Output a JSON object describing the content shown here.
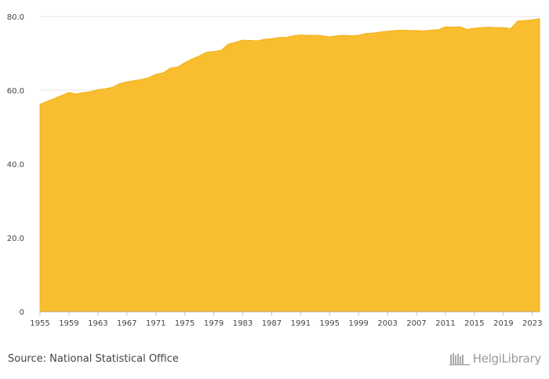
{
  "chart_data": {
    "type": "area",
    "title": "",
    "xlabel": "",
    "ylabel": "",
    "ylim": [
      0,
      80
    ],
    "xlim": [
      1955,
      2024
    ],
    "y_ticks": [
      "0",
      "20.0",
      "40.0",
      "60.0",
      "80.0"
    ],
    "x_ticks": [
      "1955",
      "1959",
      "1963",
      "1967",
      "1971",
      "1975",
      "1979",
      "1983",
      "1987",
      "1991",
      "1995",
      "1999",
      "2003",
      "2007",
      "2011",
      "2015",
      "2019",
      "2023"
    ],
    "grid": true,
    "legend": "none",
    "fill_color": "#F9BD30",
    "x": [
      1955,
      1956,
      1957,
      1958,
      1959,
      1960,
      1961,
      1962,
      1963,
      1964,
      1965,
      1966,
      1967,
      1968,
      1969,
      1970,
      1971,
      1972,
      1973,
      1974,
      1975,
      1976,
      1977,
      1978,
      1979,
      1980,
      1981,
      1982,
      1983,
      1984,
      1985,
      1986,
      1987,
      1988,
      1989,
      1990,
      1991,
      1992,
      1993,
      1994,
      1995,
      1996,
      1997,
      1998,
      1999,
      2000,
      2001,
      2002,
      2003,
      2004,
      2005,
      2006,
      2007,
      2008,
      2009,
      2010,
      2011,
      2012,
      2013,
      2014,
      2015,
      2016,
      2017,
      2018,
      2019,
      2020,
      2021,
      2022,
      2023,
      2024
    ],
    "values": [
      56.2,
      57.0,
      57.8,
      58.6,
      59.4,
      59.0,
      59.4,
      59.6,
      60.2,
      60.4,
      60.8,
      61.8,
      62.3,
      62.6,
      62.9,
      63.4,
      64.3,
      64.7,
      66.0,
      66.3,
      67.5,
      68.5,
      69.3,
      70.3,
      70.5,
      70.8,
      72.5,
      73.0,
      73.6,
      73.5,
      73.4,
      73.8,
      74.0,
      74.3,
      74.3,
      74.8,
      75.0,
      74.9,
      74.9,
      74.8,
      74.5,
      74.8,
      74.9,
      74.8,
      74.9,
      75.4,
      75.5,
      75.8,
      76.0,
      76.2,
      76.3,
      76.2,
      76.2,
      76.1,
      76.3,
      76.4,
      77.2,
      77.1,
      77.2,
      76.5,
      76.8,
      77.0,
      77.1,
      77.0,
      77.0,
      76.7,
      78.8,
      78.9,
      79.1,
      79.4
    ]
  },
  "footer": {
    "source": "Source: National Statistical Office",
    "logo_text": "HelgiLibrary"
  }
}
